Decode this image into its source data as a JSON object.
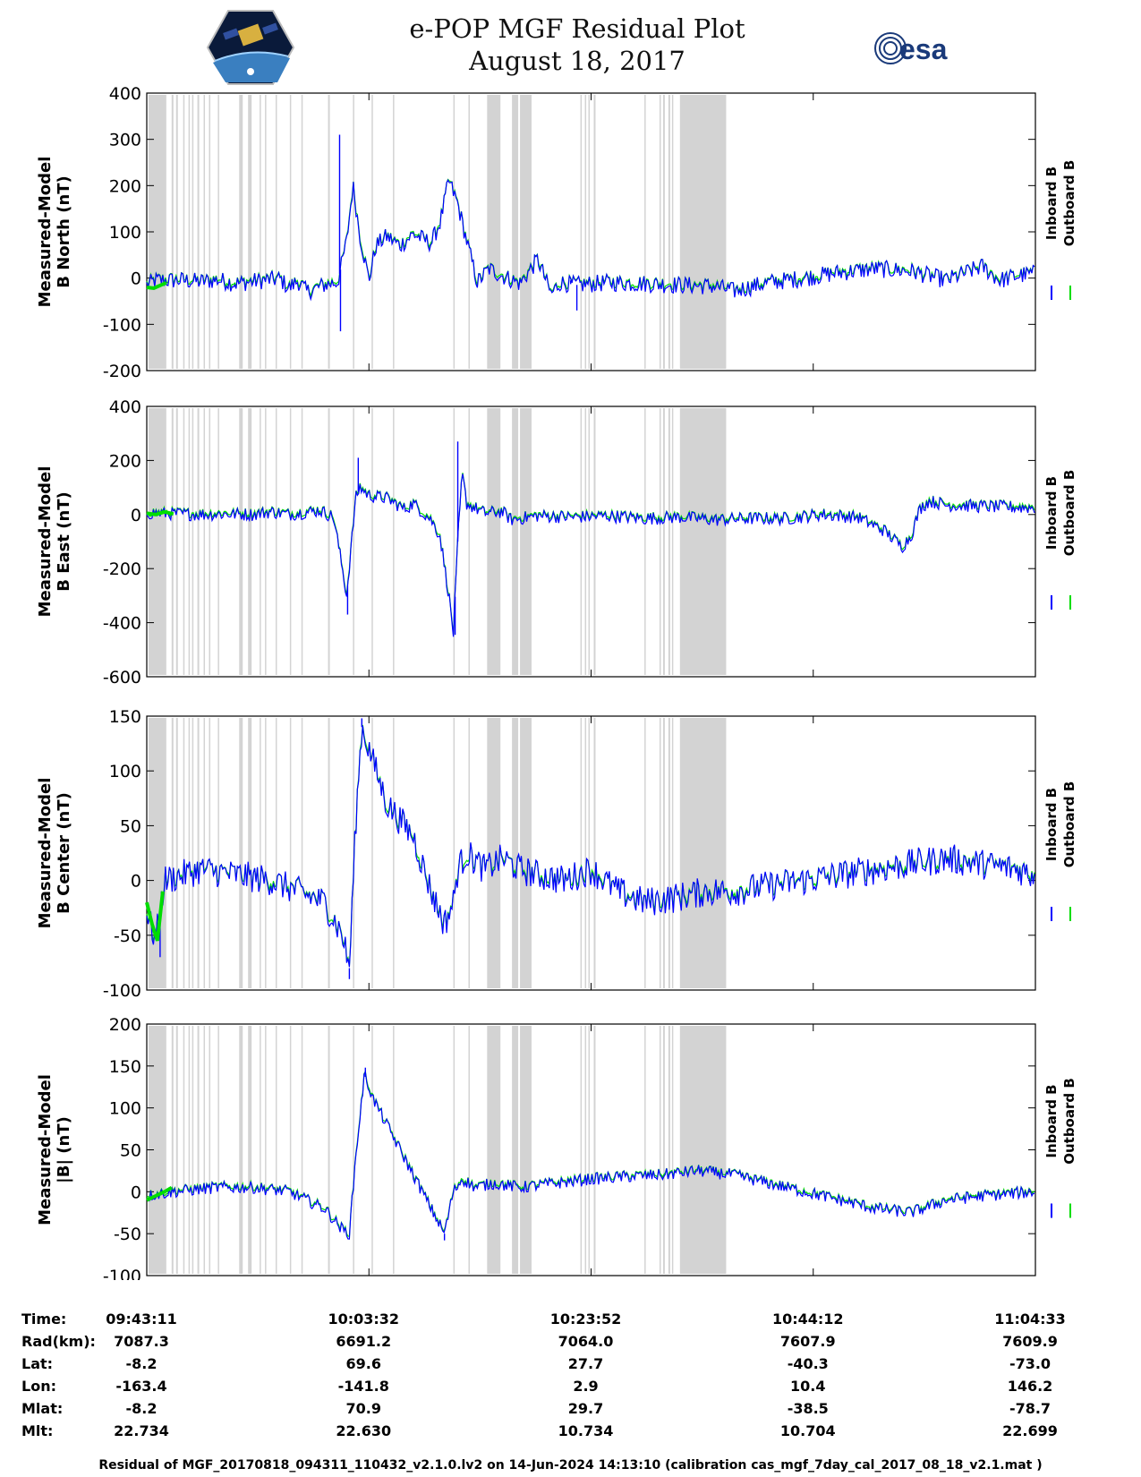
{
  "title": {
    "line1": "e-POP MGF Residual Plot",
    "line2": "August 18, 2017"
  },
  "logos": {
    "left": "cassiope-mission-logo",
    "right_text": "esa"
  },
  "colors": {
    "inboard": "#0000ff",
    "outboard": "#00dd00",
    "gap_shade": "#d3d3d3",
    "axes": "#000000"
  },
  "chart_data": [
    {
      "type": "line",
      "ylabel_line1": "Measured-Model",
      "ylabel_line2": "B North (nT)",
      "ylim": [
        -200,
        400
      ],
      "yticks": [
        -200,
        -100,
        0,
        100,
        200,
        300,
        400
      ],
      "legend": [
        "Inboard B",
        "Outboard B"
      ],
      "points": [
        [
          0,
          -15
        ],
        [
          10,
          -5
        ],
        [
          40,
          -5
        ],
        [
          60,
          -8
        ],
        [
          80,
          -4
        ],
        [
          100,
          -12
        ],
        [
          130,
          -5
        ],
        [
          150,
          -2
        ],
        [
          160,
          -22
        ],
        [
          170,
          -6
        ],
        [
          180,
          -30
        ],
        [
          200,
          -15
        ],
        [
          215,
          -8
        ],
        [
          225,
          80
        ],
        [
          232,
          200
        ],
        [
          240,
          90
        ],
        [
          250,
          -5
        ],
        [
          258,
          70
        ],
        [
          270,
          90
        ],
        [
          285,
          70
        ],
        [
          300,
          95
        ],
        [
          320,
          75
        ],
        [
          330,
          120
        ],
        [
          340,
          210
        ],
        [
          350,
          160
        ],
        [
          360,
          80
        ],
        [
          372,
          -10
        ],
        [
          385,
          20
        ],
        [
          400,
          5
        ],
        [
          420,
          -12
        ],
        [
          440,
          40
        ],
        [
          455,
          -35
        ],
        [
          465,
          -10
        ],
        [
          485,
          -15
        ],
        [
          520,
          -10
        ],
        [
          560,
          -12
        ],
        [
          600,
          -15
        ],
        [
          640,
          -18
        ],
        [
          660,
          -28
        ],
        [
          700,
          -10
        ],
        [
          740,
          0
        ],
        [
          780,
          12
        ],
        [
          820,
          20
        ],
        [
          860,
          15
        ],
        [
          900,
          -5
        ],
        [
          940,
          25
        ],
        [
          960,
          -5
        ],
        [
          980,
          5
        ],
        [
          1000,
          10
        ]
      ],
      "spikes": [
        [
          217,
          310
        ],
        [
          218,
          -115
        ],
        [
          477,
          -5
        ],
        [
          484,
          -70
        ]
      ],
      "noise": 8,
      "green_start": [
        [
          0,
          -20
        ],
        [
          8,
          -22
        ],
        [
          16,
          -15
        ],
        [
          22,
          -10
        ]
      ]
    },
    {
      "type": "line",
      "ylabel_line1": "Measured-Model",
      "ylabel_line2": "B East (nT)",
      "ylim": [
        -600,
        400
      ],
      "yticks": [
        -600,
        -400,
        -200,
        0,
        200,
        400
      ],
      "legend": [
        "Inboard B",
        "Outboard B"
      ],
      "points": [
        [
          0,
          5
        ],
        [
          30,
          3
        ],
        [
          60,
          0
        ],
        [
          90,
          2
        ],
        [
          120,
          0
        ],
        [
          140,
          10
        ],
        [
          160,
          0
        ],
        [
          195,
          15
        ],
        [
          210,
          -10
        ],
        [
          215,
          -100
        ],
        [
          220,
          -200
        ],
        [
          225,
          -300
        ],
        [
          230,
          -120
        ],
        [
          235,
          60
        ],
        [
          240,
          100
        ],
        [
          250,
          70
        ],
        [
          270,
          60
        ],
        [
          290,
          20
        ],
        [
          300,
          40
        ],
        [
          320,
          -20
        ],
        [
          330,
          -80
        ],
        [
          340,
          -300
        ],
        [
          345,
          -440
        ],
        [
          350,
          -100
        ],
        [
          355,
          150
        ],
        [
          360,
          40
        ],
        [
          380,
          5
        ],
        [
          400,
          10
        ],
        [
          410,
          -20
        ],
        [
          440,
          -5
        ],
        [
          480,
          -10
        ],
        [
          520,
          -5
        ],
        [
          560,
          -15
        ],
        [
          600,
          -10
        ],
        [
          640,
          -20
        ],
        [
          680,
          -15
        ],
        [
          720,
          -15
        ],
        [
          760,
          0
        ],
        [
          800,
          -10
        ],
        [
          830,
          -60
        ],
        [
          850,
          -120
        ],
        [
          860,
          -80
        ],
        [
          870,
          20
        ],
        [
          880,
          50
        ],
        [
          900,
          35
        ],
        [
          940,
          30
        ],
        [
          1000,
          25
        ]
      ],
      "spikes": [
        [
          226,
          -370
        ],
        [
          350,
          270
        ],
        [
          347,
          -445
        ],
        [
          238,
          210
        ]
      ],
      "noise": 6,
      "green_start": [
        [
          0,
          5
        ],
        [
          10,
          0
        ],
        [
          20,
          10
        ],
        [
          30,
          2
        ]
      ]
    },
    {
      "type": "line",
      "ylabel_line1": "Measured-Model",
      "ylabel_line2": "B Center (nT)",
      "ylim": [
        -100,
        150
      ],
      "yticks": [
        -100,
        -50,
        0,
        50,
        100,
        150
      ],
      "legend": [
        "Inboard B",
        "Outboard B"
      ],
      "points": [
        [
          0,
          -30
        ],
        [
          10,
          -55
        ],
        [
          20,
          0
        ],
        [
          60,
          10
        ],
        [
          100,
          5
        ],
        [
          140,
          0
        ],
        [
          170,
          -10
        ],
        [
          200,
          -20
        ],
        [
          220,
          -50
        ],
        [
          228,
          -80
        ],
        [
          235,
          50
        ],
        [
          242,
          140
        ],
        [
          250,
          120
        ],
        [
          270,
          70
        ],
        [
          300,
          40
        ],
        [
          320,
          -10
        ],
        [
          335,
          -40
        ],
        [
          345,
          -20
        ],
        [
          350,
          10
        ],
        [
          360,
          25
        ],
        [
          380,
          10
        ],
        [
          400,
          20
        ],
        [
          420,
          10
        ],
        [
          440,
          5
        ],
        [
          470,
          0
        ],
        [
          500,
          10
        ],
        [
          530,
          -10
        ],
        [
          560,
          -20
        ],
        [
          600,
          -15
        ],
        [
          630,
          -10
        ],
        [
          660,
          -10
        ],
        [
          700,
          -5
        ],
        [
          740,
          0
        ],
        [
          780,
          5
        ],
        [
          820,
          10
        ],
        [
          860,
          15
        ],
        [
          900,
          20
        ],
        [
          940,
          15
        ],
        [
          980,
          10
        ],
        [
          1000,
          5
        ]
      ],
      "spikes": [
        [
          15,
          -70
        ],
        [
          228,
          -90
        ],
        [
          242,
          148
        ]
      ],
      "noise": 14,
      "green_start": [
        [
          0,
          -20
        ],
        [
          6,
          -40
        ],
        [
          12,
          -55
        ],
        [
          18,
          -10
        ]
      ]
    },
    {
      "type": "line",
      "ylabel_line1": "Measured-Model",
      "ylabel_line2": "|B| (nT)",
      "ylim": [
        -100,
        200
      ],
      "yticks": [
        -100,
        -50,
        0,
        50,
        100,
        150,
        200
      ],
      "legend": [
        "Inboard B",
        "Outboard B"
      ],
      "points": [
        [
          0,
          -5
        ],
        [
          30,
          0
        ],
        [
          80,
          5
        ],
        [
          120,
          5
        ],
        [
          160,
          0
        ],
        [
          200,
          -20
        ],
        [
          220,
          -45
        ],
        [
          228,
          -50
        ],
        [
          235,
          40
        ],
        [
          245,
          140
        ],
        [
          255,
          110
        ],
        [
          280,
          60
        ],
        [
          300,
          20
        ],
        [
          320,
          -20
        ],
        [
          335,
          -50
        ],
        [
          345,
          0
        ],
        [
          355,
          15
        ],
        [
          370,
          5
        ],
        [
          390,
          10
        ],
        [
          420,
          5
        ],
        [
          460,
          10
        ],
        [
          500,
          15
        ],
        [
          540,
          18
        ],
        [
          580,
          20
        ],
        [
          620,
          25
        ],
        [
          660,
          20
        ],
        [
          700,
          10
        ],
        [
          740,
          0
        ],
        [
          780,
          -10
        ],
        [
          820,
          -20
        ],
        [
          860,
          -25
        ],
        [
          900,
          -10
        ],
        [
          940,
          -5
        ],
        [
          1000,
          0
        ]
      ],
      "spikes": [
        [
          246,
          148
        ],
        [
          335,
          -58
        ]
      ],
      "noise": 6,
      "green_start": [
        [
          0,
          -10
        ],
        [
          10,
          -5
        ],
        [
          20,
          0
        ],
        [
          28,
          5
        ]
      ]
    }
  ],
  "xaxis": {
    "tick_fractions": [
      0,
      0.25,
      0.5,
      0.75,
      1.0
    ]
  },
  "gaps": [
    [
      2,
      22
    ],
    [
      28,
      30
    ],
    [
      33,
      35
    ],
    [
      41,
      42
    ],
    [
      47,
      48
    ],
    [
      51,
      52
    ],
    [
      57,
      59
    ],
    [
      64,
      65
    ],
    [
      70,
      71
    ],
    [
      80,
      81
    ],
    [
      104,
      108
    ],
    [
      114,
      118
    ],
    [
      127,
      128
    ],
    [
      133,
      134
    ],
    [
      145,
      146
    ],
    [
      161,
      162
    ],
    [
      174,
      175
    ],
    [
      204,
      206
    ],
    [
      232,
      233
    ],
    [
      253,
      254
    ],
    [
      277,
      278
    ],
    [
      345,
      346
    ],
    [
      362,
      363
    ],
    [
      383,
      398
    ],
    [
      411,
      418
    ],
    [
      420,
      433
    ],
    [
      488,
      489
    ],
    [
      493,
      494
    ],
    [
      497,
      498
    ],
    [
      503,
      505
    ],
    [
      560,
      561
    ],
    [
      577,
      578
    ],
    [
      581,
      583
    ],
    [
      587,
      589
    ],
    [
      591,
      592
    ],
    [
      600,
      652
    ]
  ],
  "ephemeris": {
    "labels": [
      "Time:",
      "Rad(km):",
      "Lat:",
      "Lon:",
      "Mlat:",
      "Mlt:"
    ],
    "columns": [
      [
        "09:43:11",
        "7087.3",
        "-8.2",
        "-163.4",
        "-8.2",
        "22.734"
      ],
      [
        "10:03:32",
        "6691.2",
        "69.6",
        "-141.8",
        "70.9",
        "22.630"
      ],
      [
        "10:23:52",
        "7064.0",
        "27.7",
        "2.9",
        "29.7",
        "10.734"
      ],
      [
        "10:44:12",
        "7607.9",
        "-40.3",
        "10.4",
        "-38.5",
        "10.704"
      ],
      [
        "11:04:33",
        "7609.9",
        "-73.0",
        "146.2",
        "-78.7",
        "22.699"
      ]
    ]
  },
  "footer": "Residual of MGF_20170818_094311_110432_v2.1.0.lv2 on 14-Jun-2024 14:13:10 (calibration cas_mgf_7day_cal_2017_08_18_v2.1.mat )"
}
